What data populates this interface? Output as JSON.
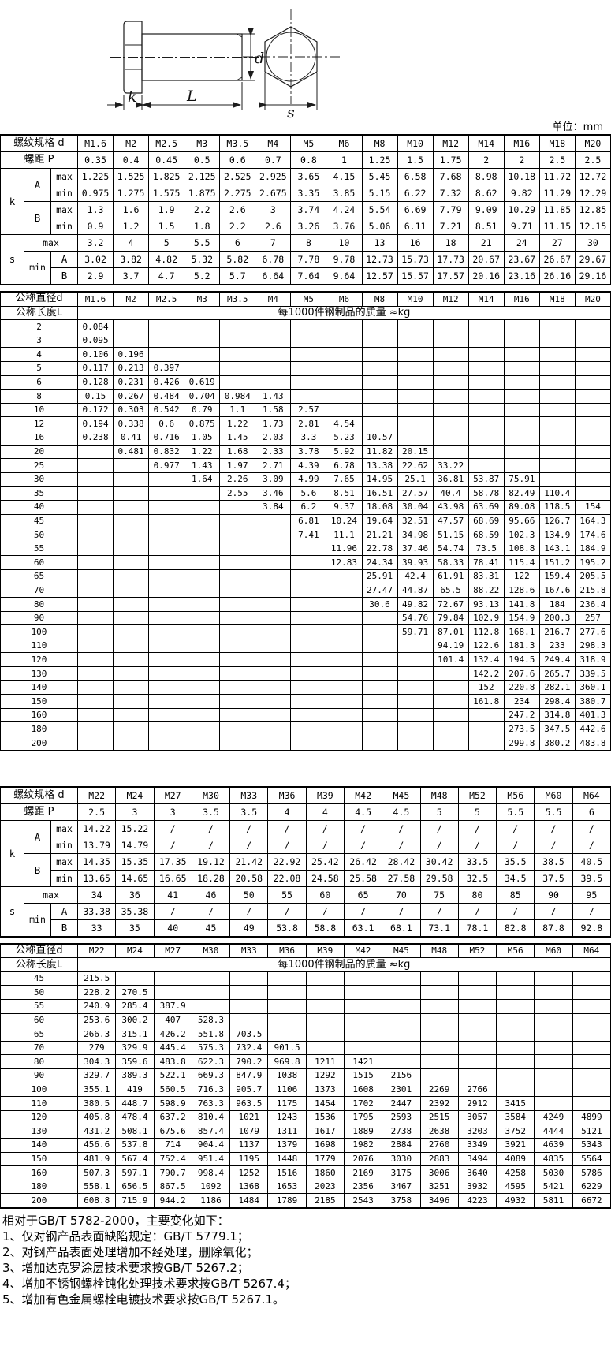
{
  "unit_label": "单位：mm",
  "diagram": {
    "labels": {
      "k": "k",
      "L": "L",
      "d": "d",
      "s": "s"
    }
  },
  "table1": {
    "spec_label": "螺纹规格 d",
    "pitch_label": "螺距 P",
    "k_label": "k",
    "s_label": "s",
    "a_label": "A",
    "b_label": "B",
    "max_label": "max",
    "min_label": "min",
    "columns": [
      "M1.6",
      "M2",
      "M2.5",
      "M3",
      "M3.5",
      "M4",
      "M5",
      "M6",
      "M8",
      "M10",
      "M12",
      "M14",
      "M16",
      "M18",
      "M20"
    ],
    "pitch": [
      "0.35",
      "0.4",
      "0.45",
      "0.5",
      "0.6",
      "0.7",
      "0.8",
      "1",
      "1.25",
      "1.5",
      "1.75",
      "2",
      "2",
      "2.5",
      "2.5"
    ],
    "k_a_max": [
      "1.225",
      "1.525",
      "1.825",
      "2.125",
      "2.525",
      "2.925",
      "3.65",
      "4.15",
      "5.45",
      "6.58",
      "7.68",
      "8.98",
      "10.18",
      "11.72",
      "12.72"
    ],
    "k_a_min": [
      "0.975",
      "1.275",
      "1.575",
      "1.875",
      "2.275",
      "2.675",
      "3.35",
      "3.85",
      "5.15",
      "6.22",
      "7.32",
      "8.62",
      "9.82",
      "11.29",
      "12.29"
    ],
    "k_b_max": [
      "1.3",
      "1.6",
      "1.9",
      "2.2",
      "2.6",
      "3",
      "3.74",
      "4.24",
      "5.54",
      "6.69",
      "7.79",
      "9.09",
      "10.29",
      "11.85",
      "12.85"
    ],
    "k_b_min": [
      "0.9",
      "1.2",
      "1.5",
      "1.8",
      "2.2",
      "2.6",
      "3.26",
      "3.76",
      "5.06",
      "6.11",
      "7.21",
      "8.51",
      "9.71",
      "11.15",
      "12.15"
    ],
    "s_max": [
      "3.2",
      "4",
      "5",
      "5.5",
      "6",
      "7",
      "8",
      "10",
      "13",
      "16",
      "18",
      "21",
      "24",
      "27",
      "30"
    ],
    "s_min_a": [
      "3.02",
      "3.82",
      "4.82",
      "5.32",
      "5.82",
      "6.78",
      "7.78",
      "9.78",
      "12.73",
      "15.73",
      "17.73",
      "20.67",
      "23.67",
      "26.67",
      "29.67"
    ],
    "s_min_b": [
      "2.9",
      "3.7",
      "4.7",
      "5.2",
      "5.7",
      "6.64",
      "7.64",
      "9.64",
      "12.57",
      "15.57",
      "17.57",
      "20.16",
      "23.16",
      "26.16",
      "29.16"
    ]
  },
  "table2": {
    "dia_label": "公称直径d",
    "len_label": "公称长度L",
    "mass_label": "每1000件钢制品的质量 ≈kg",
    "columns": [
      "M1.6",
      "M2",
      "M2.5",
      "M3",
      "M3.5",
      "M4",
      "M5",
      "M6",
      "M8",
      "M10",
      "M12",
      "M14",
      "M16",
      "M18",
      "M20"
    ],
    "rows": [
      {
        "L": "2",
        "v": [
          "0.084",
          "",
          "",
          "",
          "",
          "",
          "",
          "",
          "",
          "",
          "",
          "",
          "",
          "",
          ""
        ]
      },
      {
        "L": "3",
        "v": [
          "0.095",
          "",
          "",
          "",
          "",
          "",
          "",
          "",
          "",
          "",
          "",
          "",
          "",
          "",
          ""
        ]
      },
      {
        "L": "4",
        "v": [
          "0.106",
          "0.196",
          "",
          "",
          "",
          "",
          "",
          "",
          "",
          "",
          "",
          "",
          "",
          "",
          ""
        ]
      },
      {
        "L": "5",
        "v": [
          "0.117",
          "0.213",
          "0.397",
          "",
          "",
          "",
          "",
          "",
          "",
          "",
          "",
          "",
          "",
          "",
          ""
        ]
      },
      {
        "L": "6",
        "v": [
          "0.128",
          "0.231",
          "0.426",
          "0.619",
          "",
          "",
          "",
          "",
          "",
          "",
          "",
          "",
          "",
          "",
          ""
        ]
      },
      {
        "L": "8",
        "v": [
          "0.15",
          "0.267",
          "0.484",
          "0.704",
          "0.984",
          "1.43",
          "",
          "",
          "",
          "",
          "",
          "",
          "",
          "",
          ""
        ]
      },
      {
        "L": "10",
        "v": [
          "0.172",
          "0.303",
          "0.542",
          "0.79",
          "1.1",
          "1.58",
          "2.57",
          "",
          "",
          "",
          "",
          "",
          "",
          "",
          ""
        ]
      },
      {
        "L": "12",
        "v": [
          "0.194",
          "0.338",
          "0.6",
          "0.875",
          "1.22",
          "1.73",
          "2.81",
          "4.54",
          "",
          "",
          "",
          "",
          "",
          "",
          ""
        ]
      },
      {
        "L": "16",
        "v": [
          "0.238",
          "0.41",
          "0.716",
          "1.05",
          "1.45",
          "2.03",
          "3.3",
          "5.23",
          "10.57",
          "",
          "",
          "",
          "",
          "",
          ""
        ]
      },
      {
        "L": "20",
        "v": [
          "",
          "0.481",
          "0.832",
          "1.22",
          "1.68",
          "2.33",
          "3.78",
          "5.92",
          "11.82",
          "20.15",
          "",
          "",
          "",
          "",
          ""
        ]
      },
      {
        "L": "25",
        "v": [
          "",
          "",
          "0.977",
          "1.43",
          "1.97",
          "2.71",
          "4.39",
          "6.78",
          "13.38",
          "22.62",
          "33.22",
          "",
          "",
          "",
          ""
        ]
      },
      {
        "L": "30",
        "v": [
          "",
          "",
          "",
          "1.64",
          "2.26",
          "3.09",
          "4.99",
          "7.65",
          "14.95",
          "25.1",
          "36.81",
          "53.87",
          "75.91",
          "",
          ""
        ]
      },
      {
        "L": "35",
        "v": [
          "",
          "",
          "",
          "",
          "2.55",
          "3.46",
          "5.6",
          "8.51",
          "16.51",
          "27.57",
          "40.4",
          "58.78",
          "82.49",
          "110.4",
          ""
        ]
      },
      {
        "L": "40",
        "v": [
          "",
          "",
          "",
          "",
          "",
          "3.84",
          "6.2",
          "9.37",
          "18.08",
          "30.04",
          "43.98",
          "63.69",
          "89.08",
          "118.5",
          "154"
        ]
      },
      {
        "L": "45",
        "v": [
          "",
          "",
          "",
          "",
          "",
          "",
          "6.81",
          "10.24",
          "19.64",
          "32.51",
          "47.57",
          "68.69",
          "95.66",
          "126.7",
          "164.3"
        ]
      },
      {
        "L": "50",
        "v": [
          "",
          "",
          "",
          "",
          "",
          "",
          "7.41",
          "11.1",
          "21.21",
          "34.98",
          "51.15",
          "68.59",
          "102.3",
          "134.9",
          "174.6"
        ]
      },
      {
        "L": "55",
        "v": [
          "",
          "",
          "",
          "",
          "",
          "",
          "",
          "11.96",
          "22.78",
          "37.46",
          "54.74",
          "73.5",
          "108.8",
          "143.1",
          "184.9"
        ]
      },
      {
        "L": "60",
        "v": [
          "",
          "",
          "",
          "",
          "",
          "",
          "",
          "12.83",
          "24.34",
          "39.93",
          "58.33",
          "78.41",
          "115.4",
          "151.2",
          "195.2"
        ]
      },
      {
        "L": "65",
        "v": [
          "",
          "",
          "",
          "",
          "",
          "",
          "",
          "",
          "25.91",
          "42.4",
          "61.91",
          "83.31",
          "122",
          "159.4",
          "205.5"
        ]
      },
      {
        "L": "70",
        "v": [
          "",
          "",
          "",
          "",
          "",
          "",
          "",
          "",
          "27.47",
          "44.87",
          "65.5",
          "88.22",
          "128.6",
          "167.6",
          "215.8"
        ]
      },
      {
        "L": "80",
        "v": [
          "",
          "",
          "",
          "",
          "",
          "",
          "",
          "",
          "30.6",
          "49.82",
          "72.67",
          "93.13",
          "141.8",
          "184",
          "236.4"
        ]
      },
      {
        "L": "90",
        "v": [
          "",
          "",
          "",
          "",
          "",
          "",
          "",
          "",
          "",
          "54.76",
          "79.84",
          "102.9",
          "154.9",
          "200.3",
          "257"
        ]
      },
      {
        "L": "100",
        "v": [
          "",
          "",
          "",
          "",
          "",
          "",
          "",
          "",
          "",
          "59.71",
          "87.01",
          "112.8",
          "168.1",
          "216.7",
          "277.6"
        ]
      },
      {
        "L": "110",
        "v": [
          "",
          "",
          "",
          "",
          "",
          "",
          "",
          "",
          "",
          "",
          "94.19",
          "122.6",
          "181.3",
          "233",
          "298.3"
        ]
      },
      {
        "L": "120",
        "v": [
          "",
          "",
          "",
          "",
          "",
          "",
          "",
          "",
          "",
          "",
          "101.4",
          "132.4",
          "194.5",
          "249.4",
          "318.9"
        ]
      },
      {
        "L": "130",
        "v": [
          "",
          "",
          "",
          "",
          "",
          "",
          "",
          "",
          "",
          "",
          "",
          "142.2",
          "207.6",
          "265.7",
          "339.5"
        ]
      },
      {
        "L": "140",
        "v": [
          "",
          "",
          "",
          "",
          "",
          "",
          "",
          "",
          "",
          "",
          "",
          "152",
          "220.8",
          "282.1",
          "360.1"
        ]
      },
      {
        "L": "150",
        "v": [
          "",
          "",
          "",
          "",
          "",
          "",
          "",
          "",
          "",
          "",
          "",
          "161.8",
          "234",
          "298.4",
          "380.7"
        ]
      },
      {
        "L": "160",
        "v": [
          "",
          "",
          "",
          "",
          "",
          "",
          "",
          "",
          "",
          "",
          "",
          "",
          "247.2",
          "314.8",
          "401.3"
        ]
      },
      {
        "L": "180",
        "v": [
          "",
          "",
          "",
          "",
          "",
          "",
          "",
          "",
          "",
          "",
          "",
          "",
          "273.5",
          "347.5",
          "442.6"
        ]
      },
      {
        "L": "200",
        "v": [
          "",
          "",
          "",
          "",
          "",
          "",
          "",
          "",
          "",
          "",
          "",
          "",
          "299.8",
          "380.2",
          "483.8"
        ]
      }
    ]
  },
  "table3": {
    "spec_label": "螺纹规格 d",
    "pitch_label": "螺距 P",
    "k_label": "k",
    "s_label": "s",
    "a_label": "A",
    "b_label": "B",
    "max_label": "max",
    "min_label": "min",
    "columns": [
      "M22",
      "M24",
      "M27",
      "M30",
      "M33",
      "M36",
      "M39",
      "M42",
      "M45",
      "M48",
      "M52",
      "M56",
      "M60",
      "M64"
    ],
    "pitch": [
      "2.5",
      "3",
      "3",
      "3.5",
      "3.5",
      "4",
      "4",
      "4.5",
      "4.5",
      "5",
      "5",
      "5.5",
      "5.5",
      "6"
    ],
    "k_a_max": [
      "14.22",
      "15.22",
      "/",
      "/",
      "/",
      "/",
      "/",
      "/",
      "/",
      "/",
      "/",
      "/",
      "/",
      "/"
    ],
    "k_a_min": [
      "13.79",
      "14.79",
      "/",
      "/",
      "/",
      "/",
      "/",
      "/",
      "/",
      "/",
      "/",
      "/",
      "/",
      "/"
    ],
    "k_b_max": [
      "14.35",
      "15.35",
      "17.35",
      "19.12",
      "21.42",
      "22.92",
      "25.42",
      "26.42",
      "28.42",
      "30.42",
      "33.5",
      "35.5",
      "38.5",
      "40.5"
    ],
    "k_b_min": [
      "13.65",
      "14.65",
      "16.65",
      "18.28",
      "20.58",
      "22.08",
      "24.58",
      "25.58",
      "27.58",
      "29.58",
      "32.5",
      "34.5",
      "37.5",
      "39.5"
    ],
    "s_max": [
      "34",
      "36",
      "41",
      "46",
      "50",
      "55",
      "60",
      "65",
      "70",
      "75",
      "80",
      "85",
      "90",
      "95"
    ],
    "s_min_a": [
      "33.38",
      "35.38",
      "/",
      "/",
      "/",
      "/",
      "/",
      "/",
      "/",
      "/",
      "/",
      "/",
      "/",
      "/"
    ],
    "s_min_b": [
      "33",
      "35",
      "40",
      "45",
      "49",
      "53.8",
      "58.8",
      "63.1",
      "68.1",
      "73.1",
      "78.1",
      "82.8",
      "87.8",
      "92.8"
    ]
  },
  "table4": {
    "dia_label": "公称直径d",
    "len_label": "公称长度L",
    "mass_label": "每1000件钢制品的质量 ≈kg",
    "columns": [
      "M22",
      "M24",
      "M27",
      "M30",
      "M33",
      "M36",
      "M39",
      "M42",
      "M45",
      "M48",
      "M52",
      "M56",
      "M60",
      "M64"
    ],
    "rows": [
      {
        "L": "45",
        "v": [
          "215.5",
          "",
          "",
          "",
          "",
          "",
          "",
          "",
          "",
          "",
          "",
          "",
          "",
          ""
        ]
      },
      {
        "L": "50",
        "v": [
          "228.2",
          "270.5",
          "",
          "",
          "",
          "",
          "",
          "",
          "",
          "",
          "",
          "",
          "",
          ""
        ]
      },
      {
        "L": "55",
        "v": [
          "240.9",
          "285.4",
          "387.9",
          "",
          "",
          "",
          "",
          "",
          "",
          "",
          "",
          "",
          "",
          ""
        ]
      },
      {
        "L": "60",
        "v": [
          "253.6",
          "300.2",
          "407",
          "528.3",
          "",
          "",
          "",
          "",
          "",
          "",
          "",
          "",
          "",
          ""
        ]
      },
      {
        "L": "65",
        "v": [
          "266.3",
          "315.1",
          "426.2",
          "551.8",
          "703.5",
          "",
          "",
          "",
          "",
          "",
          "",
          "",
          "",
          ""
        ]
      },
      {
        "L": "70",
        "v": [
          "279",
          "329.9",
          "445.4",
          "575.3",
          "732.4",
          "901.5",
          "",
          "",
          "",
          "",
          "",
          "",
          "",
          ""
        ]
      },
      {
        "L": "80",
        "v": [
          "304.3",
          "359.6",
          "483.8",
          "622.3",
          "790.2",
          "969.8",
          "1211",
          "1421",
          "",
          "",
          "",
          "",
          "",
          ""
        ]
      },
      {
        "L": "90",
        "v": [
          "329.7",
          "389.3",
          "522.1",
          "669.3",
          "847.9",
          "1038",
          "1292",
          "1515",
          "2156",
          "",
          "",
          "",
          "",
          ""
        ]
      },
      {
        "L": "100",
        "v": [
          "355.1",
          "419",
          "560.5",
          "716.3",
          "905.7",
          "1106",
          "1373",
          "1608",
          "2301",
          "2269",
          "2766",
          "",
          "",
          ""
        ]
      },
      {
        "L": "110",
        "v": [
          "380.5",
          "448.7",
          "598.9",
          "763.3",
          "963.5",
          "1175",
          "1454",
          "1702",
          "2447",
          "2392",
          "2912",
          "3415",
          "",
          ""
        ]
      },
      {
        "L": "120",
        "v": [
          "405.8",
          "478.4",
          "637.2",
          "810.4",
          "1021",
          "1243",
          "1536",
          "1795",
          "2593",
          "2515",
          "3057",
          "3584",
          "4249",
          "4899"
        ]
      },
      {
        "L": "130",
        "v": [
          "431.2",
          "508.1",
          "675.6",
          "857.4",
          "1079",
          "1311",
          "1617",
          "1889",
          "2738",
          "2638",
          "3203",
          "3752",
          "4444",
          "5121"
        ]
      },
      {
        "L": "140",
        "v": [
          "456.6",
          "537.8",
          "714",
          "904.4",
          "1137",
          "1379",
          "1698",
          "1982",
          "2884",
          "2760",
          "3349",
          "3921",
          "4639",
          "5343"
        ]
      },
      {
        "L": "150",
        "v": [
          "481.9",
          "567.4",
          "752.4",
          "951.4",
          "1195",
          "1448",
          "1779",
          "2076",
          "3030",
          "2883",
          "3494",
          "4089",
          "4835",
          "5564"
        ]
      },
      {
        "L": "160",
        "v": [
          "507.3",
          "597.1",
          "790.7",
          "998.4",
          "1252",
          "1516",
          "1860",
          "2169",
          "3175",
          "3006",
          "3640",
          "4258",
          "5030",
          "5786"
        ]
      },
      {
        "L": "180",
        "v": [
          "558.1",
          "656.5",
          "867.5",
          "1092",
          "1368",
          "1653",
          "2023",
          "2356",
          "3467",
          "3251",
          "3932",
          "4595",
          "5421",
          "6229"
        ]
      },
      {
        "L": "200",
        "v": [
          "608.8",
          "715.9",
          "944.2",
          "1186",
          "1484",
          "1789",
          "2185",
          "2543",
          "3758",
          "3496",
          "4223",
          "4932",
          "5811",
          "6672"
        ]
      }
    ]
  },
  "notes": [
    "相对于GB/T 5782-2000，主要变化如下：",
    "1、仅对钢产品表面缺陷规定：GB/T 5779.1；",
    "2、对钢产品表面处理增加不经处理，删除氧化；",
    "3、增加达克罗涂层技术要求按GB/T 5267.2；",
    "4、增加不锈钢螺栓钝化处理技术要求按GB/T 5267.4；",
    "5、增加有色金属螺栓电镀技术要求按GB/T 5267.1。"
  ]
}
